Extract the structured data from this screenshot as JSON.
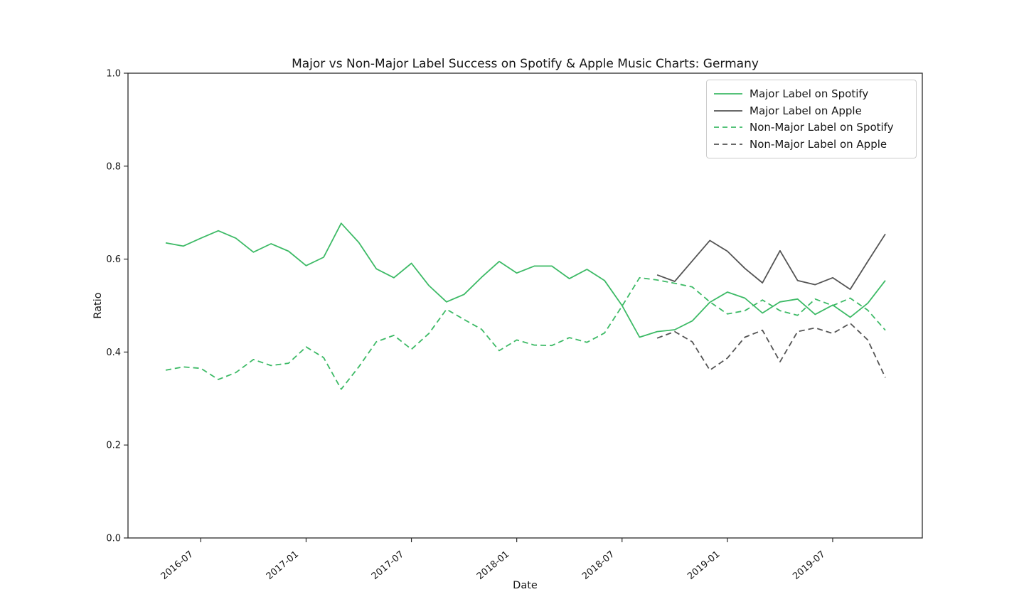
{
  "chart_data": {
    "type": "line",
    "title": "Major vs Non-Major Label Success on Spotify & Apple Music Charts: Germany",
    "xlabel": "Date",
    "ylabel": "Ratio",
    "ylim": [
      0.0,
      1.0
    ],
    "yticks": [
      "0.0",
      "0.2",
      "0.4",
      "0.6",
      "0.8",
      "1.0"
    ],
    "xtick_labels": [
      "2016-07",
      "2017-01",
      "2017-07",
      "2018-01",
      "2018-07",
      "2019-01",
      "2019-07"
    ],
    "grid": false,
    "legend_position": "upper right",
    "x": [
      "2016-05",
      "2016-06",
      "2016-07",
      "2016-08",
      "2016-09",
      "2016-10",
      "2016-11",
      "2016-12",
      "2017-01",
      "2017-02",
      "2017-03",
      "2017-04",
      "2017-05",
      "2017-06",
      "2017-07",
      "2017-08",
      "2017-09",
      "2017-10",
      "2017-11",
      "2017-12",
      "2018-01",
      "2018-02",
      "2018-03",
      "2018-04",
      "2018-05",
      "2018-06",
      "2018-07",
      "2018-08",
      "2018-09",
      "2018-10",
      "2018-11",
      "2018-12",
      "2019-01",
      "2019-02",
      "2019-03",
      "2019-04",
      "2019-05",
      "2019-06",
      "2019-07",
      "2019-08",
      "2019-09",
      "2019-10"
    ],
    "series": [
      {
        "name": "Major Label on Spotify",
        "color": "#3dba66",
        "style": "solid",
        "start_index": 0,
        "values": [
          0.635,
          0.628,
          0.645,
          0.661,
          0.645,
          0.615,
          0.633,
          0.617,
          0.586,
          0.604,
          0.677,
          0.636,
          0.579,
          0.56,
          0.591,
          0.543,
          0.508,
          0.524,
          0.561,
          0.595,
          0.57,
          0.585,
          0.585,
          0.558,
          0.578,
          0.554,
          0.5,
          0.432,
          0.444,
          0.448,
          0.467,
          0.507,
          0.529,
          0.516,
          0.484,
          0.508,
          0.514,
          0.481,
          0.501,
          0.475,
          0.505,
          0.554
        ]
      },
      {
        "name": "Major Label on Apple",
        "color": "#545454",
        "style": "solid",
        "start_index": 28,
        "values": [
          0.566,
          0.552,
          0.596,
          0.64,
          0.617,
          0.58,
          0.549,
          0.618,
          0.554,
          0.545,
          0.56,
          0.535,
          0.595,
          0.654
        ]
      },
      {
        "name": "Non-Major Label on Spotify",
        "color": "#3dba66",
        "style": "dashed",
        "start_index": 0,
        "values": [
          0.361,
          0.368,
          0.365,
          0.341,
          0.356,
          0.384,
          0.371,
          0.376,
          0.411,
          0.388,
          0.32,
          0.368,
          0.422,
          0.436,
          0.406,
          0.44,
          0.492,
          0.47,
          0.449,
          0.403,
          0.426,
          0.415,
          0.414,
          0.431,
          0.421,
          0.441,
          0.499,
          0.56,
          0.555,
          0.548,
          0.54,
          0.508,
          0.482,
          0.489,
          0.512,
          0.489,
          0.479,
          0.514,
          0.5,
          0.516,
          0.49,
          0.447
        ]
      },
      {
        "name": "Non-Major Label on Apple",
        "color": "#545454",
        "style": "dashed",
        "start_index": 28,
        "values": [
          0.43,
          0.444,
          0.422,
          0.361,
          0.387,
          0.432,
          0.447,
          0.379,
          0.444,
          0.452,
          0.44,
          0.462,
          0.426,
          0.345
        ]
      }
    ],
    "colors": {
      "spine": "#2b2b2b",
      "tick": "#2b2b2b",
      "background": "#ffffff",
      "legend_border": "#cccccc",
      "text": "#161616"
    }
  }
}
